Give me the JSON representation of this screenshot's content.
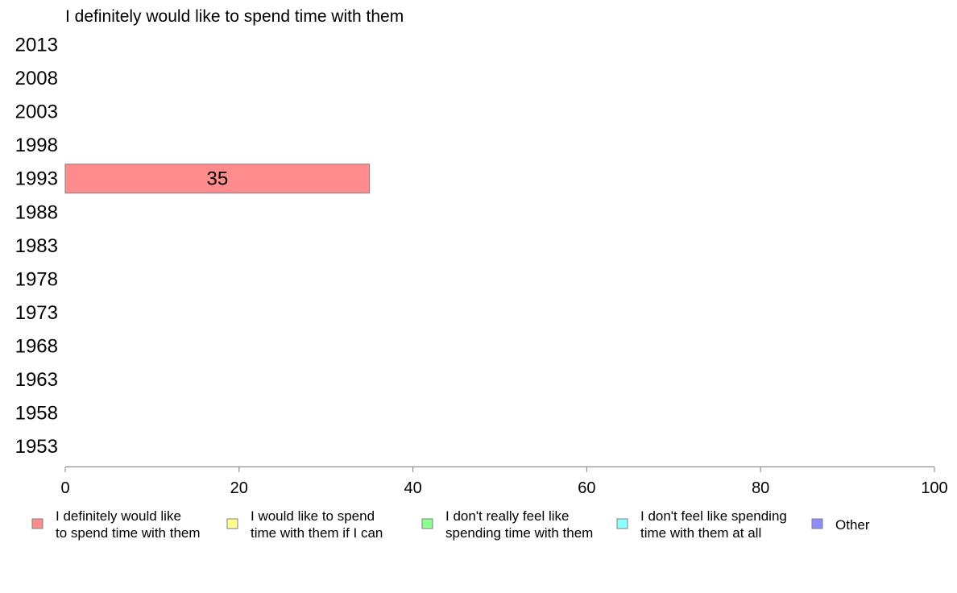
{
  "chart_data": {
    "type": "bar",
    "orientation": "horizontal",
    "stacked": true,
    "title": "I definitely would like to spend time with them",
    "xlabel": "",
    "ylabel": "",
    "xlim": [
      0,
      100
    ],
    "x_ticks": [
      0,
      20,
      40,
      60,
      80,
      100
    ],
    "categories": [
      "2013",
      "2008",
      "2003",
      "1998",
      "1993",
      "1988",
      "1983",
      "1978",
      "1973",
      "1968",
      "1963",
      "1958",
      "1953"
    ],
    "series": [
      {
        "name": "I definitely would like to spend time with them",
        "legend_lines": [
          "I definitely would like",
          "to spend time with them"
        ],
        "color": "#ff8c8c",
        "values": [
          null,
          null,
          null,
          null,
          35,
          null,
          null,
          null,
          null,
          null,
          null,
          null,
          null
        ],
        "labels": [
          "",
          "",
          "",
          "",
          "35",
          "",
          "",
          "",
          "",
          "",
          "",
          "",
          ""
        ]
      },
      {
        "name": "I would like to spend time with them if I can",
        "legend_lines": [
          "I would like to spend",
          "time with them if I can"
        ],
        "color": "#ffff8c",
        "values": [
          null,
          null,
          null,
          null,
          null,
          null,
          null,
          null,
          null,
          null,
          null,
          null,
          null
        ]
      },
      {
        "name": "I don't really feel like spending time with them",
        "legend_lines": [
          "I don't really feel like",
          "spending time with them"
        ],
        "color": "#8cff8c",
        "values": [
          null,
          null,
          null,
          null,
          null,
          null,
          null,
          null,
          null,
          null,
          null,
          null,
          null
        ]
      },
      {
        "name": "I don't feel like spending time with them at all",
        "legend_lines": [
          "I don't feel like spending",
          "time with them at all"
        ],
        "color": "#8cffff",
        "values": [
          null,
          null,
          null,
          null,
          null,
          null,
          null,
          null,
          null,
          null,
          null,
          null,
          null
        ]
      },
      {
        "name": "Other",
        "legend_lines": [
          "Other"
        ],
        "color": "#8c8cff",
        "values": [
          null,
          null,
          null,
          null,
          null,
          null,
          null,
          null,
          null,
          null,
          null,
          null,
          null
        ]
      }
    ],
    "legend_position": "bottom",
    "grid": false
  }
}
